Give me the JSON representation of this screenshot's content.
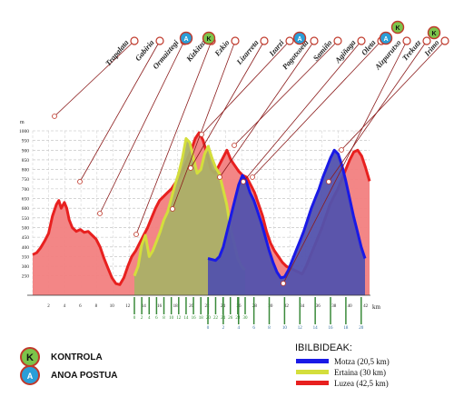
{
  "chart_data": {
    "type": "area",
    "y_unit": "m",
    "ylim": [
      150,
      1000
    ],
    "y_ticks": [
      250,
      300,
      350,
      400,
      450,
      500,
      550,
      600,
      650,
      700,
      750,
      800,
      850,
      900,
      950,
      1000
    ],
    "x_unit": "km",
    "x_axes": [
      {
        "series": "Luzea (42,5 km)",
        "ticks": [
          2,
          4,
          6,
          8,
          10,
          12,
          14,
          16,
          18,
          20,
          22,
          24,
          26,
          28,
          30,
          32,
          34,
          36,
          38,
          40,
          42
        ]
      },
      {
        "series": "Ertaina (30 km)",
        "ticks": [
          0,
          2,
          4,
          6,
          8,
          10,
          12,
          14,
          16,
          18,
          20,
          22,
          24,
          26,
          28,
          30
        ]
      },
      {
        "series": "Motza (20,5 km)",
        "ticks": [
          0,
          2,
          4,
          6,
          8,
          10,
          12,
          14,
          16,
          18,
          20
        ]
      }
    ],
    "series": [
      {
        "name": "Luzea (42,5 km)",
        "color": "#e8201f",
        "fill": "#f28080",
        "x": [
          0,
          0.5,
          1,
          1.5,
          2,
          2.5,
          3,
          3.3,
          3.6,
          4,
          4.3,
          4.6,
          5,
          5.5,
          6,
          6.5,
          7,
          7.5,
          8,
          8.5,
          9,
          9.5,
          10,
          10.5,
          11,
          11.5,
          12,
          12.5,
          13,
          13.5,
          14,
          14.5,
          15,
          15.5,
          16,
          16.5,
          17,
          17.5,
          18,
          18.5,
          19,
          19.5,
          20,
          20.5,
          21,
          21.5,
          22,
          22.5,
          23,
          23.5,
          24,
          24.5,
          25,
          25.5,
          26,
          26.5,
          27,
          27.5,
          28,
          28.5,
          29,
          29.5,
          30,
          30.5,
          31,
          31.5,
          32,
          32.5,
          33,
          33.5,
          34,
          34.5,
          35,
          35.5,
          36,
          36.5,
          37,
          37.5,
          38,
          38.5,
          39,
          39.5,
          40,
          40.5,
          41,
          41.5,
          42,
          42.5
        ],
        "y": [
          360,
          370,
          395,
          430,
          470,
          560,
          620,
          640,
          600,
          630,
          600,
          540,
          500,
          480,
          490,
          475,
          480,
          460,
          440,
          400,
          340,
          290,
          240,
          210,
          205,
          240,
          300,
          350,
          380,
          420,
          460,
          500,
          550,
          600,
          640,
          660,
          680,
          700,
          730,
          760,
          800,
          850,
          900,
          960,
          990,
          950,
          880,
          800,
          780,
          820,
          860,
          900,
          850,
          820,
          790,
          770,
          760,
          720,
          680,
          620,
          560,
          480,
          420,
          380,
          350,
          320,
          300,
          290,
          280,
          270,
          260,
          300,
          350,
          400,
          450,
          500,
          560,
          620,
          660,
          700,
          750,
          800,
          850,
          890,
          900,
          870,
          810,
          740
        ]
      },
      {
        "name": "Ertaina (30 km)",
        "color": "#d4de3c",
        "fill": "#aab067",
        "x": [
          0,
          1,
          2,
          3,
          4,
          5,
          6,
          7,
          8,
          9,
          10,
          11,
          12,
          13,
          14,
          15,
          16,
          17,
          18,
          19,
          20,
          21,
          22,
          23,
          24,
          25,
          26,
          27,
          28,
          29,
          30
        ],
        "y": [
          250,
          300,
          410,
          460,
          350,
          380,
          430,
          480,
          540,
          580,
          650,
          720,
          780,
          860,
          960,
          940,
          860,
          780,
          800,
          880,
          920,
          860,
          810,
          780,
          700,
          620,
          500,
          420,
          340,
          300,
          280
        ]
      },
      {
        "name": "Motza (20,5 km)",
        "color": "#1a1ae6",
        "fill": "#5252ad",
        "x": [
          0,
          0.5,
          1,
          1.5,
          2,
          2.5,
          3,
          3.5,
          4,
          4.5,
          5,
          5.5,
          6,
          6.5,
          7,
          7.5,
          8,
          8.5,
          9,
          9.5,
          10,
          10.5,
          11,
          11.5,
          12,
          12.5,
          13,
          13.5,
          14,
          14.5,
          15,
          15.5,
          16,
          16.5,
          17,
          17.5,
          18,
          18.5,
          19,
          19.5,
          20,
          20.5
        ],
        "y": [
          340,
          335,
          330,
          350,
          400,
          480,
          560,
          640,
          720,
          770,
          740,
          680,
          640,
          580,
          520,
          450,
          380,
          320,
          270,
          240,
          245,
          280,
          330,
          380,
          430,
          480,
          540,
          600,
          650,
          700,
          760,
          810,
          860,
          900,
          880,
          820,
          740,
          650,
          560,
          480,
          400,
          340
        ]
      }
    ],
    "waypoints": [
      "Trapalata",
      "Gabiria",
      "Ormaiztegi",
      "Kizkitza",
      "Ezkio",
      "Lizarreta",
      "Izarzi",
      "Pagotxoeta",
      "Samiño",
      "Agiñaga",
      "Oleta",
      "Aizpurutxo",
      "Trekutz",
      "Irimo"
    ],
    "icons": [
      "kontrola-icon",
      "anoa-postua-icon"
    ]
  },
  "legend": {
    "title": "IBILBIDEAK:",
    "items": [
      {
        "label": "Motza (20,5 km)",
        "color": "#1a1ae6"
      },
      {
        "label": "Ertaina (30 km)",
        "color": "#d4de3c"
      },
      {
        "label": "Luzea (42,5 km)",
        "color": "#e8201f"
      }
    ]
  },
  "badges": [
    {
      "label": "KONTROLA",
      "icon": "kontrola-icon",
      "letter": "K",
      "color": "#7cc44a"
    },
    {
      "label": "ANOA POSTUA",
      "icon": "anoa-postua-icon",
      "letter": "A",
      "color": "#2a9ed8"
    }
  ]
}
